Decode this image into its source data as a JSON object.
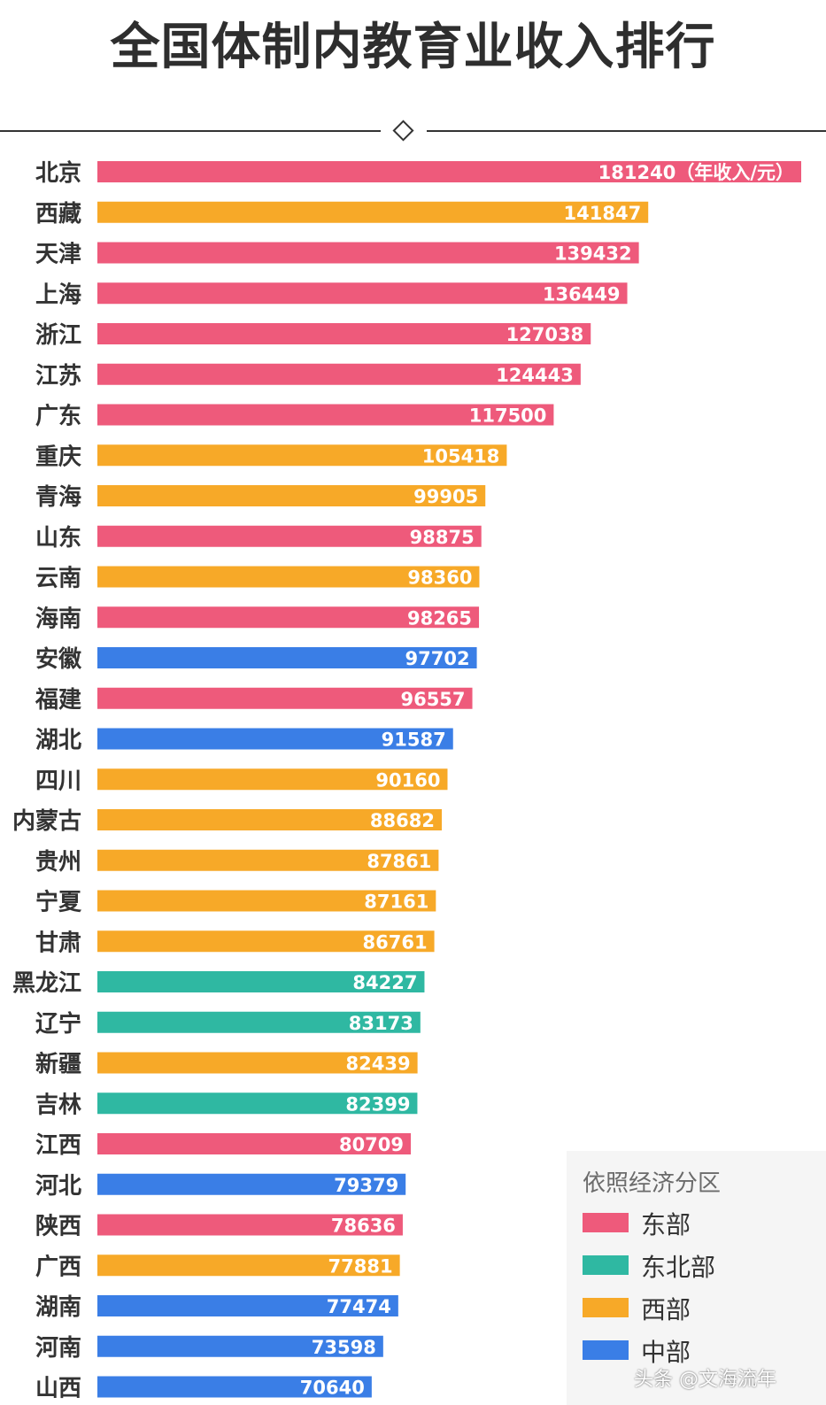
{
  "chart_data": {
    "type": "bar",
    "orientation": "horizontal",
    "title": "全国体制内教育业收入排行",
    "unit_note": "（年收入/元）",
    "categories": [
      "北京",
      "西藏",
      "天津",
      "上海",
      "浙江",
      "江苏",
      "广东",
      "重庆",
      "青海",
      "山东",
      "云南",
      "海南",
      "安徽",
      "福建",
      "湖北",
      "四川",
      "内蒙古",
      "贵州",
      "宁夏",
      "甘肃",
      "黑龙江",
      "辽宁",
      "新疆",
      "吉林",
      "江西",
      "河北",
      "陕西",
      "广西",
      "湖南",
      "河南",
      "山西"
    ],
    "values": [
      181240,
      141847,
      139432,
      136449,
      127038,
      124443,
      117500,
      105418,
      99905,
      98875,
      98360,
      98265,
      97702,
      96557,
      91587,
      90160,
      88682,
      87861,
      87161,
      86761,
      84227,
      83173,
      82439,
      82399,
      80709,
      79379,
      78636,
      77881,
      77474,
      73598,
      70640
    ],
    "regions": [
      "东部",
      "西部",
      "东部",
      "东部",
      "东部",
      "东部",
      "东部",
      "西部",
      "西部",
      "东部",
      "西部",
      "东部",
      "中部",
      "东部",
      "中部",
      "西部",
      "西部",
      "西部",
      "西部",
      "西部",
      "东北部",
      "东北部",
      "西部",
      "东北部",
      "东部",
      "中部",
      "东部",
      "西部",
      "中部",
      "中部",
      "中部"
    ],
    "region_colors": {
      "东部": "#ee5a7b",
      "东北部": "#2fb8a2",
      "西部": "#f7a928",
      "中部": "#3a7ee6"
    },
    "xlim": [
      0,
      181240
    ],
    "grid": false,
    "legend": {
      "title": "依照经济分区",
      "placement": "bottom-right",
      "entries": [
        {
          "label": "东部",
          "color": "#ee5a7b"
        },
        {
          "label": "东北部",
          "color": "#2fb8a2"
        },
        {
          "label": "西部",
          "color": "#f7a928"
        },
        {
          "label": "中部",
          "color": "#3a7ee6"
        }
      ]
    }
  },
  "watermark": "头条 @文海流年"
}
